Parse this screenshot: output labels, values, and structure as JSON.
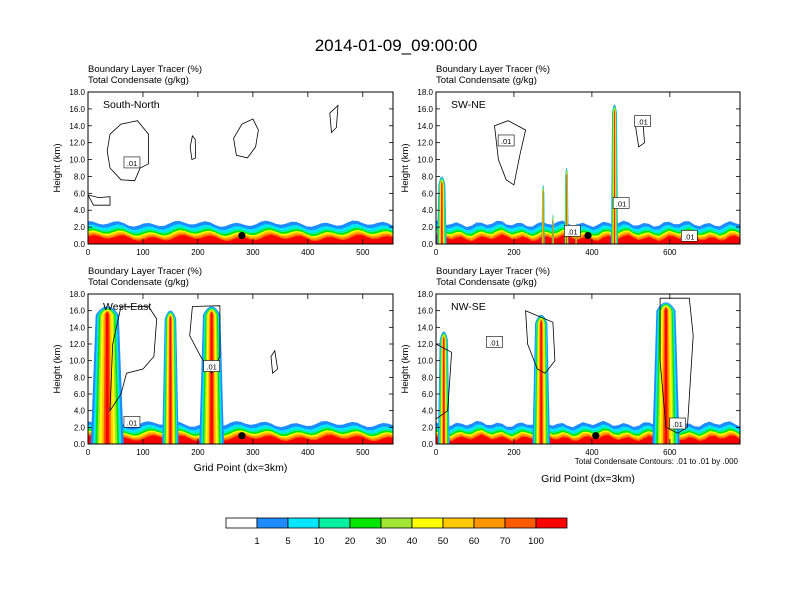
{
  "title": "2014-01-09_09:00:00",
  "colorbar": {
    "labels": [
      "1",
      "5",
      "10",
      "20",
      "30",
      "40",
      "50",
      "60",
      "70",
      "100"
    ],
    "colors": [
      "#ffffff",
      "#1e8cff",
      "#00e6ff",
      "#00f0a0",
      "#00e600",
      "#a0e632",
      "#ffff00",
      "#ffc800",
      "#ff9600",
      "#ff5a00",
      "#ff0000"
    ]
  },
  "contour_note": "Total Condensate Contours: .01 to .01 by .000",
  "chart_data": [
    {
      "type": "heatmap",
      "panel_label": "South-North",
      "line1": "Boundary Layer Tracer   (%)",
      "line2": "Total Condensate   (g/kg)",
      "ylabel": "Height (km)",
      "xlabel": "",
      "xlim": [
        0,
        555
      ],
      "ylim": [
        0,
        18
      ],
      "xticks": [
        "0",
        "100",
        "200",
        "300",
        "400",
        "500"
      ],
      "xtick_values": [
        0,
        100,
        200,
        300,
        400,
        500
      ],
      "yticks": [
        "0.0",
        "2.0",
        "4.0",
        "6.0",
        "8.0",
        "10.0",
        "12.0",
        "14.0",
        "16.0",
        "18.0"
      ],
      "contour_labels": [
        {
          "text": ".01",
          "x": 80,
          "y": 9.6
        }
      ],
      "station": {
        "x": 280,
        "y": 1.0
      },
      "clouds": [
        {
          "x": [
            [
              60,
              0.2
            ],
            [
              90,
              0.1
            ],
            [
              100,
              0.2
            ],
            [
              110,
              0.15
            ],
            [
              120,
              0.2
            ]
          ],
          "note": ""
        }
      ]
    },
    {
      "type": "heatmap",
      "panel_label": "SW-NE",
      "line1": "Boundary Layer Tracer   (%)",
      "line2": "Total Condensate   (g/kg)",
      "ylabel": "Height (km)",
      "xlabel": "",
      "xlim": [
        0,
        780
      ],
      "ylim": [
        0,
        18
      ],
      "xticks": [
        "0",
        "200",
        "400",
        "600"
      ],
      "xtick_values": [
        0,
        200,
        400,
        600
      ],
      "yticks": [
        "0.0",
        "2.0",
        "4.0",
        "6.0",
        "8.0",
        "10.0",
        "12.0",
        "14.0",
        "16.0",
        "18.0"
      ],
      "contour_labels": [
        {
          "text": ".01",
          "x": 180,
          "y": 12.2
        },
        {
          "text": ".01",
          "x": 530,
          "y": 14.5
        },
        {
          "text": ".01",
          "x": 475,
          "y": 4.8
        },
        {
          "text": ".01",
          "x": 350,
          "y": 1.5
        },
        {
          "text": ".01",
          "x": 650,
          "y": 0.9
        }
      ],
      "station": {
        "x": 390,
        "y": 1.0
      }
    },
    {
      "type": "heatmap",
      "panel_label": "West-East",
      "line1": "Boundary Layer Tracer   (%)",
      "line2": "Total Condensate   (g/kg)",
      "ylabel": "Height (km)",
      "xlabel": "Grid Point (dx=3km)",
      "xlim": [
        0,
        555
      ],
      "ylim": [
        0,
        18
      ],
      "xticks": [
        "0",
        "100",
        "200",
        "300",
        "400",
        "500"
      ],
      "xtick_values": [
        0,
        100,
        200,
        300,
        400,
        500
      ],
      "yticks": [
        "0.0",
        "2.0",
        "4.0",
        "6.0",
        "8.0",
        "10.0",
        "12.0",
        "14.0",
        "16.0",
        "18.0"
      ],
      "contour_labels": [
        {
          "text": ".01",
          "x": 225,
          "y": 9.3
        },
        {
          "text": ".01",
          "x": 80,
          "y": 2.6
        }
      ],
      "station": {
        "x": 280,
        "y": 1.0
      }
    },
    {
      "type": "heatmap",
      "panel_label": "NW-SE",
      "line1": "Boundary Layer Tracer   (%)",
      "line2": "Total Condensate   (g/kg)",
      "ylabel": "Height (km)",
      "xlabel": "Grid Point (dx=3km)",
      "xlim": [
        0,
        780
      ],
      "ylim": [
        0,
        18
      ],
      "xticks": [
        "0",
        "200",
        "400",
        "600"
      ],
      "xtick_values": [
        0,
        200,
        400,
        600
      ],
      "yticks": [
        "0.0",
        "2.0",
        "4.0",
        "6.0",
        "8.0",
        "10.0",
        "12.0",
        "14.0",
        "16.0",
        "18.0"
      ],
      "contour_labels": [
        {
          "text": ".01",
          "x": 150,
          "y": 12.2
        },
        {
          "text": ".01",
          "x": 620,
          "y": 2.4
        }
      ],
      "station": {
        "x": 410,
        "y": 1.0
      }
    }
  ]
}
